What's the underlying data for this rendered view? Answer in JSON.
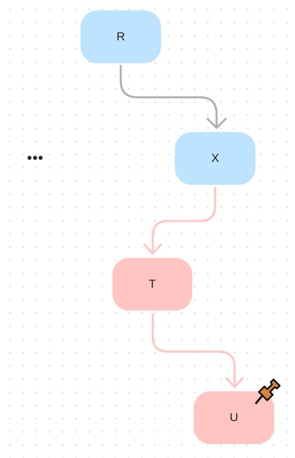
{
  "nodes": {
    "r": {
      "label": "R"
    },
    "x": {
      "label": "X"
    },
    "t": {
      "label": "T"
    },
    "u": {
      "label": "U"
    }
  },
  "more_label": "•••",
  "icons": {
    "pin": "pushpin-icon",
    "arrowhead": "arrowhead-icon"
  },
  "colors": {
    "node_blue": "#bde3fe",
    "node_pink": "#ffc5c3",
    "edge_gray": "#b0b0b0",
    "edge_pink": "#ffc5c3",
    "pin_orange": "#d9853b"
  }
}
